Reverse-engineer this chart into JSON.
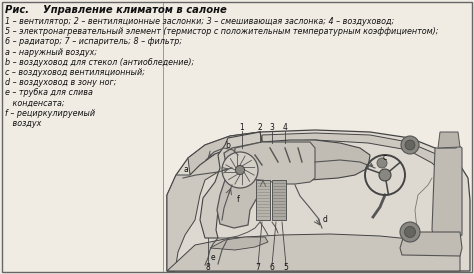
{
  "bg_color": "#f0ece4",
  "border_color": "#666666",
  "line_color": "#333333",
  "text_color": "#111111",
  "title": "Рис.    Управление климатом в салоне",
  "legend": [
    "1 – вентилятор; 2 – вентиляционные заслонки; 3 – смешивающая заслонка; 4 – воздуховод;",
    "5 – электронагревательный элемент (термистор с положительным температурным коэффициентом);",
    "6 – радиатор; 7 – испаритель; 8 – фильтр;",
    "a – наружный воздух;",
    "b – воздуховод для стекол (антиобледение);",
    "c – воздуховод вентиляционный;",
    "d – воздуховод в зону ног;",
    "e – трубка для слива",
    "   конденсата;",
    "f – рециркулируемый",
    "   воздух"
  ],
  "car_color": "#d8d4cc",
  "car_edge": "#444444",
  "hvac_color": "#c8c4bc",
  "fan_color": "#b8b4ac",
  "dark_color": "#888880",
  "seat_color": "#c0bbb0",
  "fig_w": 4.74,
  "fig_h": 2.74,
  "dpi": 100
}
